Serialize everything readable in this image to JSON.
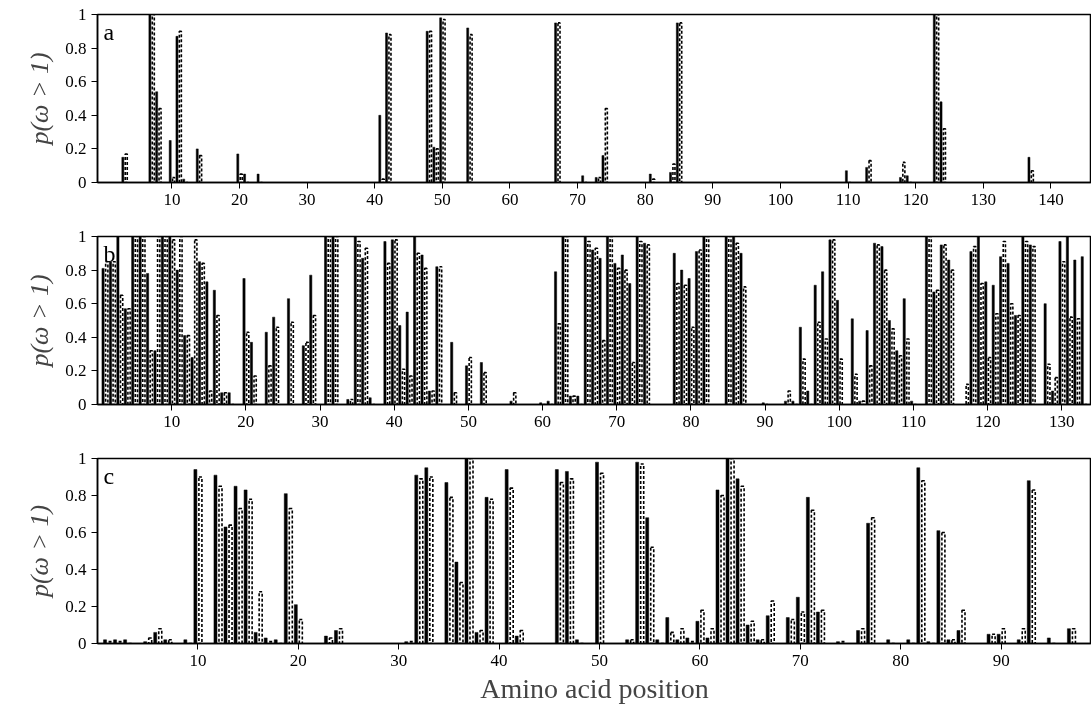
{
  "chart_data": [
    {
      "type": "bar",
      "annotations": [
        "a"
      ],
      "ylabel": "p(ω > 1)",
      "xlim": [
        -1,
        146
      ],
      "xticks": [
        10,
        20,
        30,
        40,
        50,
        60,
        70,
        80,
        90,
        100,
        110,
        120,
        130,
        140
      ],
      "ylim": [
        0,
        1
      ],
      "yticks": [
        0,
        0.2,
        0.4,
        0.6,
        0.8,
        1
      ],
      "x": [
        3,
        7,
        8,
        10,
        11,
        12,
        14,
        20,
        21,
        23,
        41,
        42,
        48,
        49,
        50,
        54,
        67,
        71,
        73,
        74,
        81,
        84,
        85,
        110,
        113,
        118,
        119,
        123,
        124,
        137
      ],
      "series": [
        {
          "color": "#000000",
          "line_style": "solid",
          "values": [
            0.15,
            1,
            0.54,
            0.25,
            0.87,
            0.02,
            0.2,
            0.17,
            0.05,
            0.05,
            0.4,
            0.89,
            0.9,
            0.21,
            0.98,
            0.92,
            0.95,
            0.04,
            0.03,
            0.16,
            0.05,
            0.06,
            0.95,
            0.07,
            0.09,
            0.03,
            0.04,
            1,
            0.48,
            0.15
          ]
        },
        {
          "color": "#000000",
          "line_style": "dashed",
          "values": [
            0.17,
            1,
            0.44,
            0.03,
            0.9,
            0,
            0.16,
            0.05,
            0,
            0,
            0.02,
            0.88,
            0.9,
            0.2,
            0.97,
            0.88,
            0.95,
            0,
            0.03,
            0.44,
            0.02,
            0.11,
            0.95,
            0,
            0.13,
            0.12,
            0,
            1,
            0.32,
            0.07
          ]
        }
      ]
    },
    {
      "type": "bar",
      "annotations": [
        "b"
      ],
      "ylabel": "p(ω > 1)",
      "xlim": [
        0,
        134
      ],
      "xticks": [
        10,
        20,
        30,
        40,
        50,
        60,
        70,
        80,
        90,
        100,
        110,
        120,
        130
      ],
      "ylim": [
        0,
        1
      ],
      "yticks": [
        0,
        0.2,
        0.4,
        0.6,
        0.8,
        1
      ],
      "x": [
        1,
        2,
        3,
        4,
        5,
        6,
        7,
        8,
        9,
        10,
        11,
        12,
        13,
        14,
        15,
        16,
        17,
        18,
        20,
        21,
        23,
        24,
        26,
        28,
        29,
        31,
        32,
        34,
        35,
        36,
        37,
        39,
        40,
        41,
        42,
        43,
        44,
        45,
        46,
        48,
        50,
        52,
        56,
        60,
        61,
        62,
        63,
        64,
        65,
        66,
        67,
        68,
        69,
        70,
        71,
        72,
        73,
        74,
        78,
        79,
        80,
        81,
        82,
        85,
        86,
        87,
        90,
        93,
        94,
        95,
        96,
        97,
        98,
        99,
        100,
        102,
        103,
        104,
        105,
        106,
        107,
        108,
        109,
        110,
        112,
        113,
        114,
        115,
        117,
        118,
        119,
        120,
        121,
        122,
        123,
        124,
        125,
        126,
        128,
        129,
        130,
        131,
        132,
        133
      ],
      "series": [
        {
          "color": "#000000",
          "line_style": "solid",
          "values": [
            0.81,
            0.85,
            1,
            0.57,
            1,
            1,
            0.78,
            0.32,
            1,
            1,
            0.8,
            0.41,
            0.28,
            0.85,
            0.73,
            0.68,
            0.07,
            0.07,
            0.75,
            0.37,
            0.43,
            0.52,
            0.63,
            0.35,
            0.77,
            1,
            1,
            0.03,
            1,
            0.87,
            0.04,
            0.97,
            0.98,
            0.47,
            0.55,
            1,
            0.89,
            0.08,
            0.82,
            0.37,
            0.23,
            0.25,
            0.02,
            0.01,
            0.02,
            0.79,
            1,
            0.05,
            0.05,
            1,
            0.92,
            0.87,
            1,
            0.84,
            0.89,
            0.72,
            1,
            0.96,
            0.9,
            0.8,
            0.75,
            0.91,
            1,
            1,
            1,
            0.9,
            0.01,
            0.02,
            0.02,
            0.46,
            0.08,
            0.71,
            0.79,
            0.98,
            0.62,
            0.51,
            0.02,
            0.44,
            0.96,
            0.94,
            0.5,
            0.32,
            0.63,
            0.02,
            1,
            0.67,
            0.95,
            0.86,
            0,
            0.91,
            1,
            0.73,
            0.71,
            0.88,
            0.84,
            0.53,
            1,
            0.95,
            0.6,
            0.08,
            0.97,
            1,
            0.86,
            0.88
          ]
        },
        {
          "color": "#000000",
          "line_style": "dashed",
          "values": [
            0.85,
            0.85,
            0.65,
            0.57,
            1,
            1,
            0.32,
            1,
            1,
            0.98,
            1,
            0.41,
            0.98,
            0.84,
            0.08,
            0.53,
            0.07,
            0,
            0.43,
            0.17,
            0.23,
            0.46,
            0.49,
            0.37,
            0.53,
            1,
            1,
            0.03,
            0.97,
            0.93,
            0,
            0.84,
            0.98,
            0.21,
            0.17,
            0.9,
            0.81,
            0.08,
            0.82,
            0.07,
            0.28,
            0.19,
            0.07,
            0,
            0,
            0.48,
            1,
            0.05,
            0,
            0.97,
            0.93,
            0.38,
            1,
            0.81,
            0.8,
            0.25,
            0.97,
            0.95,
            0.72,
            0.71,
            0.46,
            0.92,
            1,
            1,
            0.96,
            0.7,
            0,
            0.08,
            0,
            0.27,
            0,
            0.49,
            0.39,
            0.98,
            0.27,
            0.18,
            0.02,
            0.23,
            0.95,
            0.8,
            0.45,
            0.29,
            0.39,
            0,
            1,
            0.68,
            0.95,
            0.8,
            0.12,
            0.94,
            0.72,
            0.28,
            0.54,
            0.97,
            0.6,
            0.53,
            0.97,
            0.94,
            0.24,
            0.16,
            0.85,
            0.52,
            0.51,
            0
          ]
        }
      ]
    },
    {
      "type": "bar",
      "annotations": [
        "c"
      ],
      "ylabel": "p(ω > 1)",
      "xlabel": "Amino acid position",
      "xlim": [
        0,
        99
      ],
      "xticks": [
        10,
        20,
        30,
        40,
        50,
        60,
        70,
        80,
        90
      ],
      "ylim": [
        0,
        1
      ],
      "yticks": [
        0,
        0.2,
        0.4,
        0.6,
        0.8,
        1
      ],
      "x": [
        1,
        2,
        3,
        5,
        6,
        7,
        9,
        10,
        12,
        13,
        14,
        15,
        16,
        17,
        18,
        19,
        20,
        23,
        24,
        31,
        32,
        33,
        35,
        36,
        37,
        38,
        39,
        41,
        42,
        46,
        47,
        48,
        50,
        53,
        54,
        55,
        56,
        57,
        58,
        59,
        60,
        61,
        62,
        63,
        64,
        65,
        66,
        67,
        69,
        70,
        71,
        72,
        74,
        76,
        77,
        79,
        81,
        82,
        83,
        84,
        85,
        86,
        89,
        90,
        92,
        93,
        95,
        97
      ],
      "series": [
        {
          "color": "#000000",
          "line_style": "solid",
          "values": [
            0.02,
            0.02,
            0.02,
            0.01,
            0.06,
            0.02,
            0.02,
            0.94,
            0.91,
            0.63,
            0.85,
            0.83,
            0.06,
            0.03,
            0.02,
            0.81,
            0.21,
            0.04,
            0.07,
            0.01,
            0.91,
            0.95,
            0.87,
            0.44,
            1,
            0.06,
            0.79,
            0.94,
            0.04,
            0.94,
            0.93,
            0.02,
            0.98,
            0.02,
            0.98,
            0.68,
            0.02,
            0.14,
            0.02,
            0.03,
            0.12,
            0.03,
            0.83,
            1,
            0.89,
            0.1,
            0.02,
            0.15,
            0.14,
            0.25,
            0.79,
            0.17,
            0.01,
            0.07,
            0.65,
            0.02,
            0.02,
            0.95,
            0.01,
            0.61,
            0.02,
            0.07,
            0.05,
            0.05,
            0.02,
            0.88,
            0.03,
            0.08
          ]
        },
        {
          "color": "#000000",
          "line_style": "dashed",
          "values": [
            0.01,
            0.01,
            0,
            0.03,
            0.08,
            0.02,
            0,
            0.9,
            0.85,
            0.64,
            0.73,
            0.78,
            0.28,
            0.01,
            0,
            0.73,
            0.13,
            0.03,
            0.08,
            0.01,
            0.89,
            0.9,
            0.79,
            0.33,
            1,
            0.07,
            0.78,
            0.84,
            0.07,
            0.87,
            0.89,
            0,
            0.92,
            0.02,
            0.97,
            0.52,
            0,
            0.06,
            0.08,
            0.01,
            0.18,
            0.08,
            0.8,
            1,
            0.85,
            0.12,
            0.02,
            0.23,
            0.13,
            0.17,
            0.72,
            0.18,
            0.01,
            0.08,
            0.68,
            0,
            0,
            0.88,
            0,
            0.6,
            0.02,
            0.18,
            0.05,
            0.08,
            0.08,
            0.83,
            0,
            0.08
          ]
        }
      ]
    }
  ]
}
